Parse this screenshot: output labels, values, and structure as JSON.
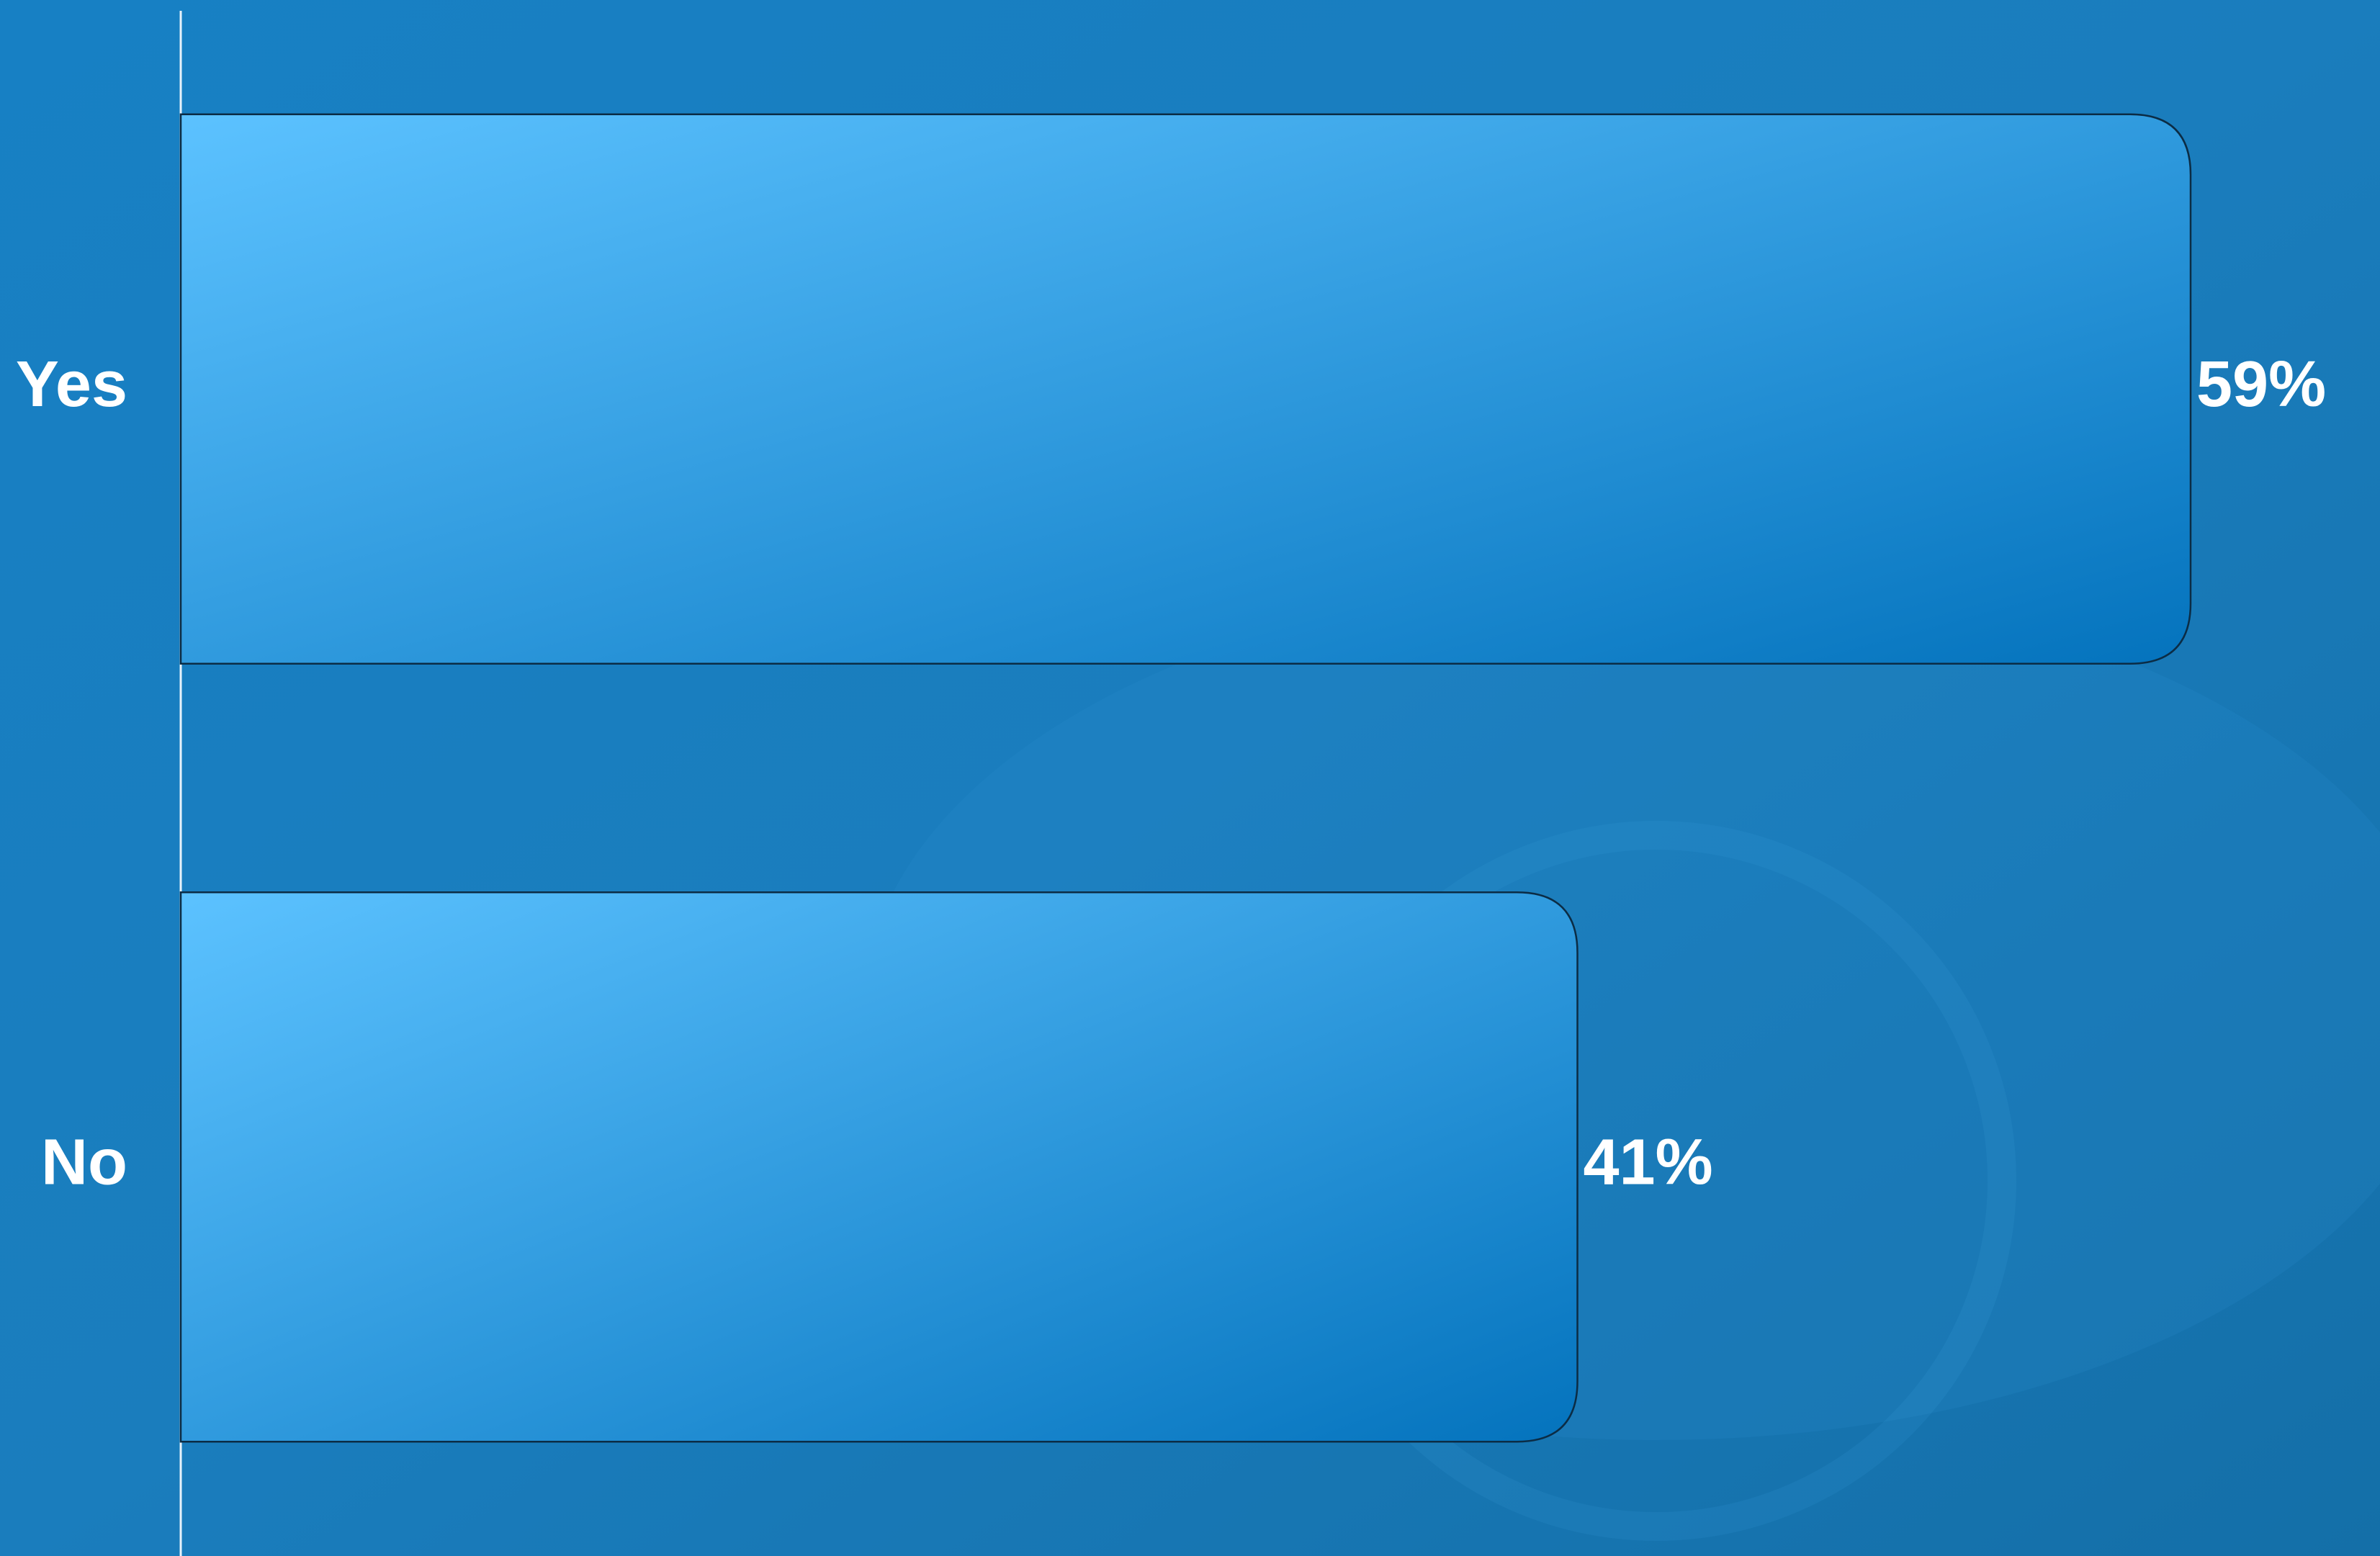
{
  "chart_data": {
    "type": "bar",
    "orientation": "horizontal",
    "categories": [
      "Yes",
      "No"
    ],
    "values": [
      59,
      41
    ],
    "value_labels": [
      "59%",
      "41%"
    ],
    "color": "#2a9ee0"
  }
}
